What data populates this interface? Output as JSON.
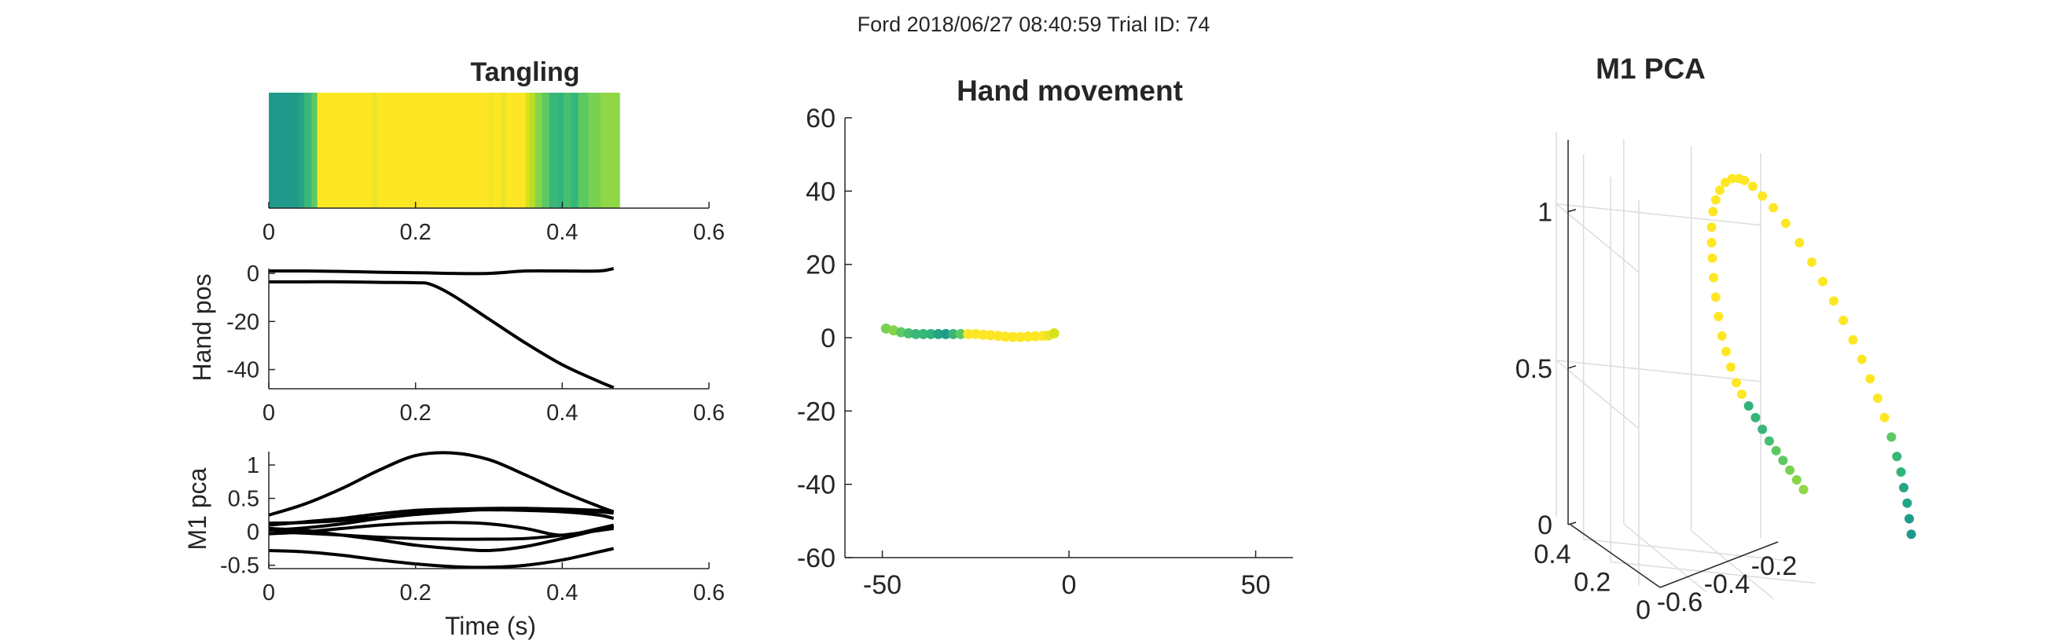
{
  "figure": {
    "suptitle": "Ford 2018/06/27 08:40:59 Trial ID: 74"
  },
  "chart_data": [
    {
      "id": "tangling",
      "type": "heatmap",
      "title": "Tangling",
      "xlabel": "",
      "ylabel": "",
      "xlim": [
        0,
        0.6
      ],
      "xticks": [
        0,
        0.2,
        0.4,
        0.6
      ],
      "tick_labels": [
        "0",
        "0.2",
        "0.4",
        "0.6"
      ],
      "colormap": "viridis",
      "segments": [
        {
          "x0": 0.0,
          "x1": 0.04,
          "color": "#1f9a8a"
        },
        {
          "x0": 0.04,
          "x1": 0.048,
          "color": "#25a386"
        },
        {
          "x0": 0.048,
          "x1": 0.058,
          "color": "#3bb679"
        },
        {
          "x0": 0.058,
          "x1": 0.066,
          "color": "#5ec962"
        },
        {
          "x0": 0.066,
          "x1": 0.14,
          "color": "#fde725"
        },
        {
          "x0": 0.14,
          "x1": 0.148,
          "color": "#ece527"
        },
        {
          "x0": 0.148,
          "x1": 0.3,
          "color": "#fde725"
        },
        {
          "x0": 0.3,
          "x1": 0.306,
          "color": "#f2e526"
        },
        {
          "x0": 0.306,
          "x1": 0.316,
          "color": "#fde725"
        },
        {
          "x0": 0.316,
          "x1": 0.323,
          "color": "#eae426"
        },
        {
          "x0": 0.323,
          "x1": 0.35,
          "color": "#fde725"
        },
        {
          "x0": 0.35,
          "x1": 0.356,
          "color": "#d8e219"
        },
        {
          "x0": 0.356,
          "x1": 0.363,
          "color": "#b5de2b"
        },
        {
          "x0": 0.363,
          "x1": 0.372,
          "color": "#86d549"
        },
        {
          "x0": 0.372,
          "x1": 0.382,
          "color": "#5ec962"
        },
        {
          "x0": 0.382,
          "x1": 0.394,
          "color": "#3bb679"
        },
        {
          "x0": 0.394,
          "x1": 0.402,
          "color": "#2fb47c"
        },
        {
          "x0": 0.402,
          "x1": 0.412,
          "color": "#48be71"
        },
        {
          "x0": 0.412,
          "x1": 0.422,
          "color": "#35b779"
        },
        {
          "x0": 0.422,
          "x1": 0.436,
          "color": "#5ec962"
        },
        {
          "x0": 0.436,
          "x1": 0.452,
          "color": "#7ad151"
        },
        {
          "x0": 0.452,
          "x1": 0.478,
          "color": "#8fd744"
        }
      ]
    },
    {
      "id": "hand_pos",
      "type": "line",
      "title": "",
      "xlabel": "",
      "ylabel": "Hand pos",
      "xlim": [
        0,
        0.6
      ],
      "ylim": [
        -48,
        2
      ],
      "xticks": [
        0,
        0.2,
        0.4,
        0.6
      ],
      "xtick_labels": [
        "0",
        "0.2",
        "0.4",
        "0.6"
      ],
      "yticks": [
        0,
        -20,
        -40
      ],
      "ytick_labels": [
        "0",
        "-20",
        "-40"
      ],
      "x": [
        0,
        0.05,
        0.1,
        0.15,
        0.2,
        0.22,
        0.25,
        0.3,
        0.35,
        0.4,
        0.45,
        0.47
      ],
      "series": [
        {
          "values": [
            1,
            1,
            0.8,
            0.5,
            0.3,
            0.2,
            0,
            0,
            1,
            1,
            1,
            2
          ]
        },
        {
          "values": [
            -3.5,
            -3.5,
            -3.5,
            -3.7,
            -3.9,
            -4.5,
            -9,
            -19,
            -29,
            -38,
            -45,
            -47.5
          ]
        }
      ]
    },
    {
      "id": "m1_pca",
      "type": "line",
      "title": "",
      "xlabel": "Time (s)",
      "ylabel": "M1 pca",
      "xlim": [
        0,
        0.6
      ],
      "ylim": [
        -0.55,
        1.2
      ],
      "xticks": [
        0,
        0.2,
        0.4,
        0.6
      ],
      "xtick_labels": [
        "0",
        "0.2",
        "0.4",
        "0.6"
      ],
      "yticks": [
        1,
        0.5,
        0,
        -0.5
      ],
      "ytick_labels": [
        "1",
        "0.5",
        "0",
        "-0.5"
      ],
      "x": [
        0,
        0.05,
        0.1,
        0.15,
        0.2,
        0.25,
        0.3,
        0.35,
        0.4,
        0.45,
        0.47
      ],
      "series": [
        {
          "values": [
            0.25,
            0.42,
            0.65,
            0.92,
            1.14,
            1.18,
            1.08,
            0.85,
            0.6,
            0.38,
            0.3
          ]
        },
        {
          "values": [
            0.1,
            0.15,
            0.2,
            0.27,
            0.32,
            0.34,
            0.35,
            0.35,
            0.34,
            0.32,
            0.3
          ]
        },
        {
          "values": [
            0.13,
            0.14,
            0.17,
            0.22,
            0.28,
            0.32,
            0.33,
            0.32,
            0.3,
            0.25,
            0.2
          ]
        },
        {
          "values": [
            0.02,
            0.06,
            0.12,
            0.2,
            0.26,
            0.3,
            0.34,
            0.35,
            0.33,
            0.3,
            0.28
          ]
        },
        {
          "values": [
            -0.03,
            0,
            0.05,
            0.1,
            0.13,
            0.14,
            0.12,
            0.05,
            -0.05,
            0.05,
            0.1
          ]
        },
        {
          "values": [
            0.05,
            0.02,
            -0.05,
            -0.12,
            -0.2,
            -0.25,
            -0.28,
            -0.22,
            -0.1,
            0.03,
            0.08
          ]
        },
        {
          "values": [
            0,
            -0.02,
            -0.05,
            -0.08,
            -0.1,
            -0.11,
            -0.11,
            -0.1,
            -0.05,
            0.02,
            0.05
          ]
        },
        {
          "values": [
            -0.28,
            -0.3,
            -0.35,
            -0.42,
            -0.48,
            -0.52,
            -0.53,
            -0.5,
            -0.42,
            -0.3,
            -0.25
          ]
        }
      ]
    },
    {
      "id": "hand_movement",
      "type": "scatter",
      "title": "Hand movement",
      "xlabel": "",
      "ylabel": "",
      "xlim": [
        -60,
        60
      ],
      "ylim": [
        -60,
        60
      ],
      "xticks": [
        -50,
        0,
        50
      ],
      "xtick_labels": [
        "-50",
        "0",
        "50"
      ],
      "yticks": [
        60,
        40,
        20,
        0,
        -20,
        -40,
        -60
      ],
      "ytick_labels": [
        "60",
        "40",
        "20",
        "0",
        "-20",
        "-40",
        "-60"
      ],
      "points": [
        {
          "x": -49,
          "y": 2.5,
          "c": "#7ad151"
        },
        {
          "x": -47,
          "y": 2.0,
          "c": "#86d549"
        },
        {
          "x": -45,
          "y": 1.5,
          "c": "#5ec962"
        },
        {
          "x": -43,
          "y": 1.2,
          "c": "#48be71"
        },
        {
          "x": -41,
          "y": 1.0,
          "c": "#3bb679"
        },
        {
          "x": -39,
          "y": 1.0,
          "c": "#35b779"
        },
        {
          "x": -37,
          "y": 1.0,
          "c": "#2fb47c"
        },
        {
          "x": -35,
          "y": 1.0,
          "c": "#21a585"
        },
        {
          "x": -33,
          "y": 1.0,
          "c": "#1f9a8a"
        },
        {
          "x": -31,
          "y": 1.0,
          "c": "#3bb679"
        },
        {
          "x": -29,
          "y": 1.0,
          "c": "#5ec962"
        },
        {
          "x": -27,
          "y": 1.0,
          "c": "#fde725"
        },
        {
          "x": -25,
          "y": 1.0,
          "c": "#fde725"
        },
        {
          "x": -23,
          "y": 0.8,
          "c": "#fde725"
        },
        {
          "x": -21,
          "y": 0.7,
          "c": "#fde725"
        },
        {
          "x": -19,
          "y": 0.5,
          "c": "#fde725"
        },
        {
          "x": -17,
          "y": 0.3,
          "c": "#fde725"
        },
        {
          "x": -15,
          "y": 0.2,
          "c": "#fde725"
        },
        {
          "x": -13,
          "y": 0.2,
          "c": "#fde725"
        },
        {
          "x": -11,
          "y": 0.3,
          "c": "#fde725"
        },
        {
          "x": -9,
          "y": 0.4,
          "c": "#fde725"
        },
        {
          "x": -7,
          "y": 0.5,
          "c": "#fde725"
        },
        {
          "x": -5.5,
          "y": 0.6,
          "c": "#eae426"
        },
        {
          "x": -4,
          "y": 1.2,
          "c": "#d8e219"
        }
      ]
    },
    {
      "id": "m1_pca_3d",
      "type": "scatter",
      "title": "M1 PCA",
      "xlabel": "",
      "ylabel": "",
      "zlabel": "",
      "zticks": [
        0,
        0.5,
        1
      ],
      "ztick_labels": [
        "0",
        "0.5",
        "1"
      ],
      "xticks": [
        -0.6,
        -0.4,
        -0.2
      ],
      "xtick_labels": [
        "-0.6",
        "-0.4",
        "-0.2"
      ],
      "yticks": [
        0,
        0.2,
        0.4
      ],
      "ytick_labels": [
        "0",
        "0.2",
        "0.4"
      ],
      "points": [
        {
          "u": 0.255,
          "v": 0.05,
          "c": "#1f9a8a"
        },
        {
          "u": 0.252,
          "v": 0.09,
          "c": "#1f9a8a"
        },
        {
          "u": 0.249,
          "v": 0.13,
          "c": "#21a585"
        },
        {
          "u": 0.244,
          "v": 0.17,
          "c": "#25a386"
        },
        {
          "u": 0.24,
          "v": 0.21,
          "c": "#2fb47c"
        },
        {
          "u": 0.234,
          "v": 0.25,
          "c": "#3bb679"
        },
        {
          "u": 0.226,
          "v": 0.3,
          "c": "#5ec962"
        },
        {
          "u": 0.216,
          "v": 0.35,
          "c": "#fde725"
        },
        {
          "u": 0.206,
          "v": 0.4,
          "c": "#fde725"
        },
        {
          "u": 0.195,
          "v": 0.45,
          "c": "#fde725"
        },
        {
          "u": 0.183,
          "v": 0.5,
          "c": "#fde725"
        },
        {
          "u": 0.17,
          "v": 0.55,
          "c": "#fde725"
        },
        {
          "u": 0.156,
          "v": 0.6,
          "c": "#fde725"
        },
        {
          "u": 0.142,
          "v": 0.65,
          "c": "#fde725"
        },
        {
          "u": 0.126,
          "v": 0.7,
          "c": "#fde725"
        },
        {
          "u": 0.11,
          "v": 0.75,
          "c": "#fde725"
        },
        {
          "u": 0.092,
          "v": 0.8,
          "c": "#fde725"
        },
        {
          "u": 0.072,
          "v": 0.85,
          "c": "#fde725"
        },
        {
          "u": 0.054,
          "v": 0.89,
          "c": "#fde725"
        },
        {
          "u": 0.038,
          "v": 0.92,
          "c": "#fde725"
        },
        {
          "u": 0.024,
          "v": 0.945,
          "c": "#fde725"
        },
        {
          "u": 0.012,
          "v": 0.96,
          "c": "#fde725"
        },
        {
          "u": 0.004,
          "v": 0.965,
          "c": "#fde725"
        },
        {
          "u": -0.006,
          "v": 0.965,
          "c": "#fde725"
        },
        {
          "u": -0.016,
          "v": 0.955,
          "c": "#fde725"
        },
        {
          "u": -0.024,
          "v": 0.935,
          "c": "#fde725"
        },
        {
          "u": -0.03,
          "v": 0.91,
          "c": "#fde725"
        },
        {
          "u": -0.034,
          "v": 0.88,
          "c": "#fde725"
        },
        {
          "u": -0.036,
          "v": 0.84,
          "c": "#fde725"
        },
        {
          "u": -0.036,
          "v": 0.8,
          "c": "#fde725"
        },
        {
          "u": -0.035,
          "v": 0.76,
          "c": "#fde725"
        },
        {
          "u": -0.033,
          "v": 0.71,
          "c": "#fde725"
        },
        {
          "u": -0.03,
          "v": 0.66,
          "c": "#fde725"
        },
        {
          "u": -0.026,
          "v": 0.61,
          "c": "#fde725"
        },
        {
          "u": -0.021,
          "v": 0.56,
          "c": "#fde725"
        },
        {
          "u": -0.015,
          "v": 0.52,
          "c": "#fde725"
        },
        {
          "u": -0.008,
          "v": 0.48,
          "c": "#fde725"
        },
        {
          "u": 0.0,
          "v": 0.44,
          "c": "#fde725"
        },
        {
          "u": 0.008,
          "v": 0.41,
          "c": "#fde725"
        },
        {
          "u": 0.018,
          "v": 0.38,
          "c": "#2fb47c"
        },
        {
          "u": 0.028,
          "v": 0.35,
          "c": "#35b779"
        },
        {
          "u": 0.038,
          "v": 0.32,
          "c": "#3bb679"
        },
        {
          "u": 0.048,
          "v": 0.29,
          "c": "#48be71"
        },
        {
          "u": 0.058,
          "v": 0.265,
          "c": "#5ec962"
        },
        {
          "u": 0.068,
          "v": 0.24,
          "c": "#5ec962"
        },
        {
          "u": 0.078,
          "v": 0.215,
          "c": "#7ad151"
        },
        {
          "u": 0.088,
          "v": 0.19,
          "c": "#86d549"
        },
        {
          "u": 0.098,
          "v": 0.165,
          "c": "#8fd744"
        }
      ]
    }
  ]
}
